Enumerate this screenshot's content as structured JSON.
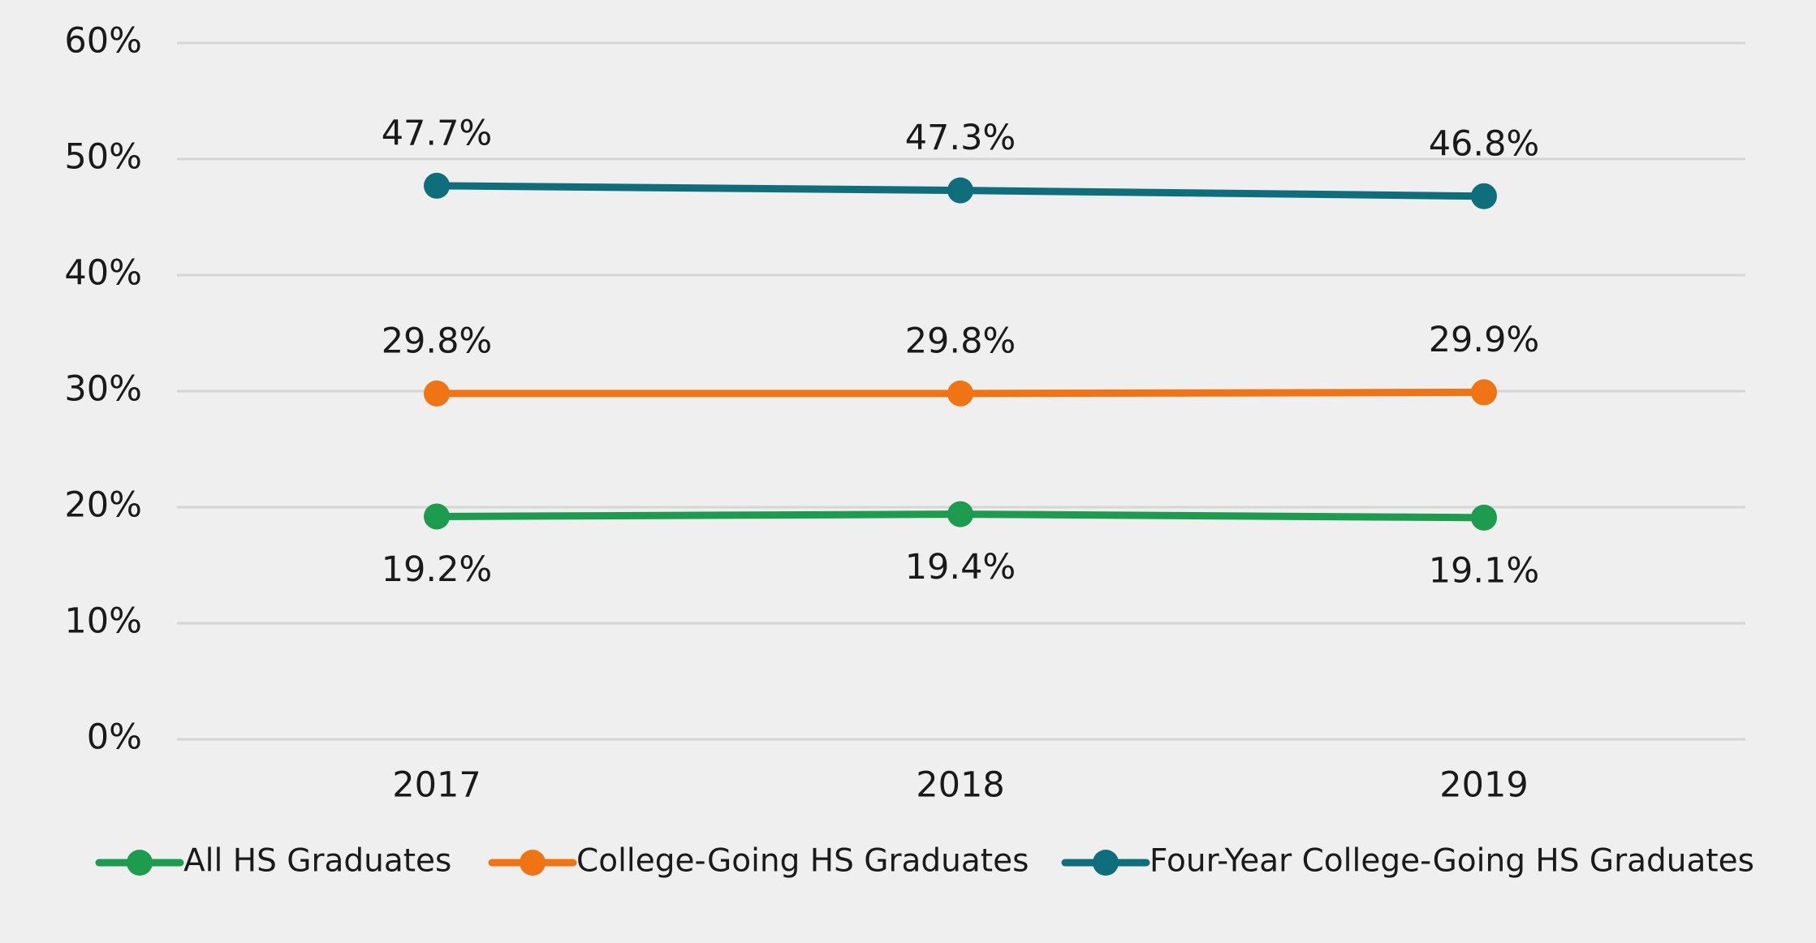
{
  "chart_data": {
    "type": "line",
    "title": "",
    "xlabel": "",
    "ylabel": "",
    "categories": [
      "2017",
      "2018",
      "2019"
    ],
    "ylim": [
      0,
      60
    ],
    "y_ticks": [
      "0%",
      "10%",
      "20%",
      "30%",
      "40%",
      "50%",
      "60%"
    ],
    "grid": true,
    "legend_position": "bottom",
    "series": [
      {
        "name": "All HS Graduates",
        "color": "#1d9b4e",
        "values": [
          19.2,
          19.4,
          19.1
        ],
        "labels": [
          "19.2%",
          "19.4%",
          "19.1%"
        ],
        "label_position": "below"
      },
      {
        "name": "College-Going HS Graduates",
        "color": "#f07314",
        "values": [
          29.8,
          29.8,
          29.9
        ],
        "labels": [
          "29.8%",
          "29.8%",
          "29.9%"
        ],
        "label_position": "above"
      },
      {
        "name": "Four-Year College-Going HS Graduates",
        "color": "#0f6e7b",
        "values": [
          47.7,
          47.3,
          46.8
        ],
        "labels": [
          "47.7%",
          "47.3%",
          "46.8%"
        ],
        "label_position": "above"
      }
    ]
  }
}
